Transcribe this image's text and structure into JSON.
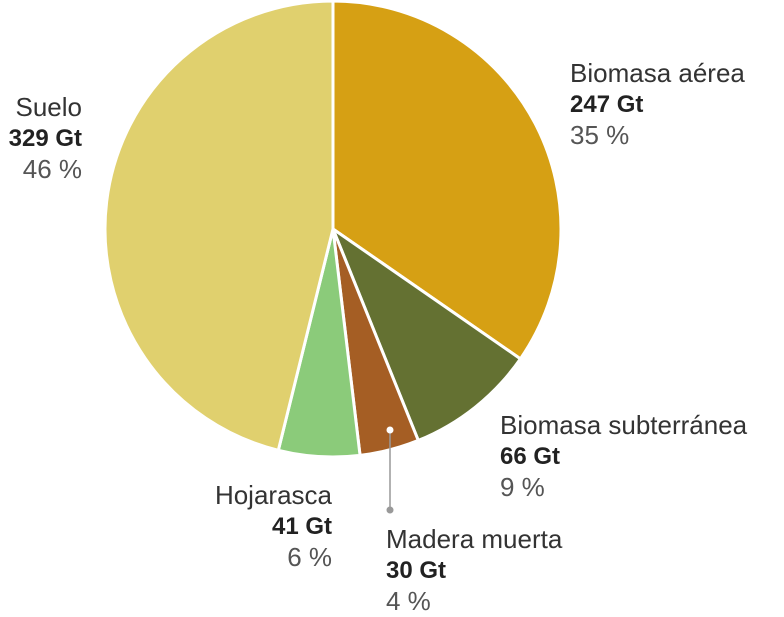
{
  "chart_data": {
    "type": "pie",
    "slices": [
      {
        "name": "Biomasa aérea",
        "value": 247,
        "value_label": "247 Gt",
        "percent_label": "35 %",
        "color": "#d6a014"
      },
      {
        "name": "Biomasa subterránea",
        "value": 66,
        "value_label": "66 Gt",
        "percent_label": "9 %",
        "color": "#647132"
      },
      {
        "name": "Madera muerta",
        "value": 30,
        "value_label": "30 Gt",
        "percent_label": "4 %",
        "color": "#a55e24"
      },
      {
        "name": "Hojarasca",
        "value": 41,
        "value_label": "41 Gt",
        "percent_label": "6 %",
        "color": "#8bcb7a"
      },
      {
        "name": "Suelo",
        "value": 329,
        "value_label": "329 Gt",
        "percent_label": "46 %",
        "color": "#e0d06e"
      }
    ],
    "start_angle": "12 o'clock",
    "direction": "clockwise"
  }
}
